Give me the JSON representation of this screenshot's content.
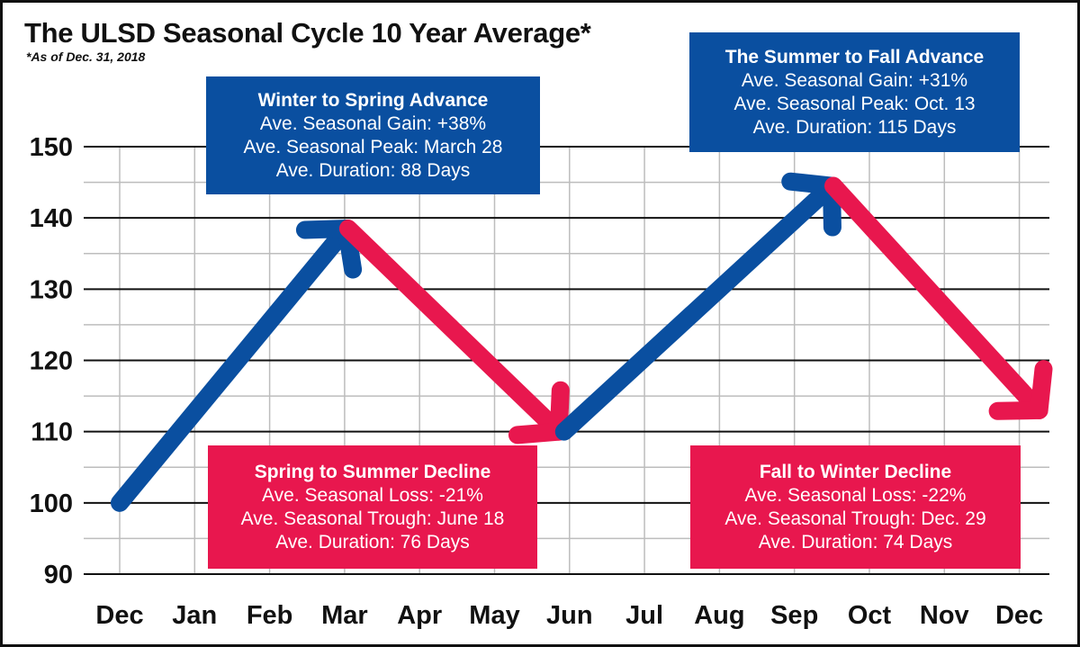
{
  "chart_data": {
    "type": "line",
    "title": "The ULSD Seasonal Cycle 10 Year Average*",
    "subtitle": "*As of Dec. 31, 2018",
    "categories": [
      "Dec",
      "Jan",
      "Feb",
      "Mar",
      "Apr",
      "May",
      "Jun",
      "Jul",
      "Aug",
      "Sep",
      "Oct",
      "Nov",
      "Dec"
    ],
    "y_ticks": [
      90,
      100,
      110,
      120,
      130,
      140,
      150
    ],
    "ylim": [
      90,
      150
    ],
    "grid": true,
    "xlabel": "",
    "ylabel": "",
    "segments": [
      {
        "kind": "advance",
        "color": "#0A4FA0",
        "from": {
          "x": "Dec",
          "y": 100
        },
        "to": {
          "x": "Mar",
          "y": 138.5
        }
      },
      {
        "kind": "decline",
        "color": "#E8174E",
        "from": {
          "x": "Mar",
          "y": 138.5
        },
        "to": {
          "x": "Jun",
          "y": 110
        }
      },
      {
        "kind": "advance",
        "color": "#0A4FA0",
        "from": {
          "x": "Jun",
          "y": 110
        },
        "to": {
          "x": "Oct",
          "y": 144.5
        }
      },
      {
        "kind": "decline",
        "color": "#E8174E",
        "from": {
          "x": "Oct",
          "y": 144.5
        },
        "to": {
          "x": "Dec",
          "y": 113
        }
      }
    ],
    "annotations": [
      {
        "id": "winter-spring",
        "color": "blue",
        "heading": "Winter to Spring Advance",
        "lines": [
          "Ave. Seasonal Gain: +38%",
          "Ave. Seasonal Peak: March 28",
          "Ave. Duration: 88 Days"
        ]
      },
      {
        "id": "summer-fall",
        "color": "blue",
        "heading": "The Summer to Fall Advance",
        "lines": [
          "Ave. Seasonal Gain: +31%",
          "Ave. Seasonal Peak: Oct. 13",
          "Ave. Duration: 115 Days"
        ]
      },
      {
        "id": "spring-summer",
        "color": "red",
        "heading": "Spring to Summer Decline",
        "lines": [
          "Ave. Seasonal Loss: -21%",
          "Ave. Seasonal Trough: June 18",
          "Ave. Duration: 76 Days"
        ]
      },
      {
        "id": "fall-winter",
        "color": "red",
        "heading": "Fall to Winter Decline",
        "lines": [
          "Ave. Seasonal Loss: -22%",
          "Ave. Seasonal Trough: Dec. 29",
          "Ave. Duration: 74 Days"
        ]
      }
    ]
  },
  "colors": {
    "advance": "#0A4FA0",
    "decline": "#E8174E",
    "grid_minor": "#bdbdbd",
    "grid_major": "#111111",
    "text": "#111111"
  }
}
